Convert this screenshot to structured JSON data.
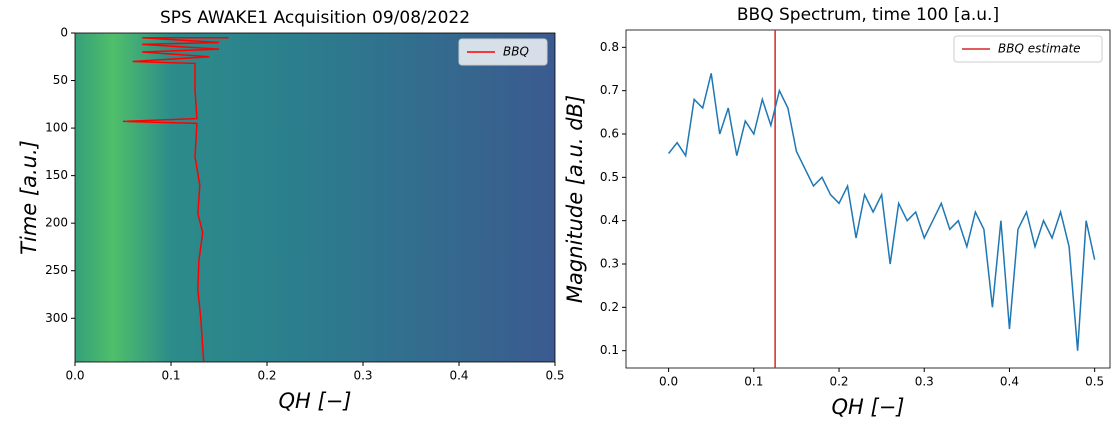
{
  "chart_data": [
    {
      "type": "spectrogram",
      "title": "SPS AWAKE1 Acquisition 09/08/2022",
      "x_label": "QH [−]",
      "y_label": "Time [a.u.]",
      "xlim": [
        0,
        0.5
      ],
      "xticks": [
        {
          "value": 0,
          "label": "0.0"
        },
        0.1,
        0.2,
        0.3,
        0.4,
        0.5
      ],
      "ylim": [
        346,
        0
      ],
      "yticks": [
        0,
        50,
        100,
        150,
        200,
        250,
        300
      ],
      "legend": "upper right",
      "series": [
        {
          "name": "BBQ",
          "color": "#ff0000",
          "x": [
            0.16,
            0.07,
            0.15,
            0.07,
            0.15,
            0.07,
            0.14,
            0.06,
            0.125,
            0.125,
            0.127,
            0.05,
            0.127,
            0.125,
            0.13,
            0.128,
            0.133,
            0.129,
            0.128,
            0.131,
            0.133,
            0.134
          ],
          "values": [
            5,
            5,
            10,
            12,
            17,
            20,
            25,
            30,
            32,
            60,
            90,
            93,
            95,
            130,
            160,
            190,
            210,
            240,
            270,
            300,
            330,
            345
          ]
        }
      ]
    },
    {
      "type": "line",
      "title": "BBQ Spectrum, time 100 [a.u.]",
      "x_label": "QH [−]",
      "y_label": "Magnitude [a.u. dB]",
      "xlim": [
        -0.05,
        0.518
      ],
      "xticks": [
        {
          "value": 0,
          "label": "0.0"
        },
        0.1,
        0.2,
        0.3,
        0.4,
        0.5
      ],
      "ylim": [
        0.06,
        0.84
      ],
      "yticks": [
        0.1,
        0.2,
        0.3,
        0.4,
        0.5,
        0.6,
        0.7,
        0.8
      ],
      "legend": "upper right",
      "series": [
        {
          "name": "BBQ estimate",
          "color": "#d62728",
          "vline": 0.125
        },
        {
          "color": "#1f77b4",
          "x": [
            0,
            0.01,
            0.02,
            0.03,
            0.04,
            0.05,
            0.06,
            0.07,
            0.08,
            0.09,
            0.1,
            0.11,
            0.12,
            0.13,
            0.14,
            0.15,
            0.16,
            0.17,
            0.18,
            0.19,
            0.2,
            0.21,
            0.22,
            0.23,
            0.24,
            0.25,
            0.26,
            0.27,
            0.28,
            0.29,
            0.3,
            0.31,
            0.32,
            0.33,
            0.34,
            0.35,
            0.36,
            0.37,
            0.38,
            0.39,
            0.4,
            0.41,
            0.42,
            0.43,
            0.44,
            0.45,
            0.46,
            0.47,
            0.48,
            0.49,
            0.5
          ],
          "values": [
            0.555,
            0.58,
            0.55,
            0.68,
            0.66,
            0.74,
            0.6,
            0.66,
            0.55,
            0.63,
            0.6,
            0.68,
            0.62,
            0.7,
            0.66,
            0.56,
            0.52,
            0.48,
            0.5,
            0.46,
            0.44,
            0.48,
            0.36,
            0.46,
            0.42,
            0.46,
            0.3,
            0.44,
            0.4,
            0.42,
            0.36,
            0.4,
            0.44,
            0.38,
            0.4,
            0.34,
            0.42,
            0.38,
            0.2,
            0.4,
            0.15,
            0.38,
            0.42,
            0.34,
            0.4,
            0.36,
            0.42,
            0.34,
            0.1,
            0.4,
            0.31
          ]
        }
      ]
    }
  ]
}
